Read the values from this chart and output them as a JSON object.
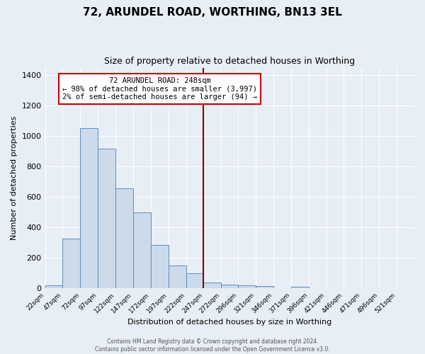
{
  "title": "72, ARUNDEL ROAD, WORTHING, BN13 3EL",
  "subtitle": "Size of property relative to detached houses in Worthing",
  "xlabel": "Distribution of detached houses by size in Worthing",
  "ylabel": "Number of detached properties",
  "bar_color": "#ccdaea",
  "bar_edge_color": "#5b8fc4",
  "vline_x": 247,
  "vline_color": "#8b0000",
  "annotation_title": "72 ARUNDEL ROAD: 248sqm",
  "annotation_line1": "← 98% of detached houses are smaller (3,997)",
  "annotation_line2": "2% of semi-detached houses are larger (94) →",
  "annotation_box_color": "#ffffff",
  "annotation_border_color": "#cc0000",
  "categories": [
    "22sqm",
    "47sqm",
    "72sqm",
    "97sqm",
    "122sqm",
    "147sqm",
    "172sqm",
    "197sqm",
    "222sqm",
    "247sqm",
    "272sqm",
    "296sqm",
    "321sqm",
    "346sqm",
    "371sqm",
    "396sqm",
    "421sqm",
    "446sqm",
    "471sqm",
    "496sqm",
    "521sqm"
  ],
  "values": [
    22,
    330,
    1055,
    920,
    660,
    500,
    285,
    150,
    100,
    40,
    25,
    22,
    15,
    0,
    12,
    0,
    0,
    0,
    0,
    0,
    0
  ],
  "bin_edges": [
    22,
    47,
    72,
    97,
    122,
    147,
    172,
    197,
    222,
    247,
    272,
    296,
    321,
    346,
    371,
    396,
    421,
    446,
    471,
    496,
    521,
    546
  ],
  "ylim": [
    0,
    1450
  ],
  "yticks": [
    0,
    200,
    400,
    600,
    800,
    1000,
    1200,
    1400
  ],
  "background_color": "#e8eef5",
  "plot_bg_color": "#e8eef5",
  "footer_line1": "Contains HM Land Registry data © Crown copyright and database right 2024.",
  "footer_line2": "Contains public sector information licensed under the Open Government Licence v3.0."
}
